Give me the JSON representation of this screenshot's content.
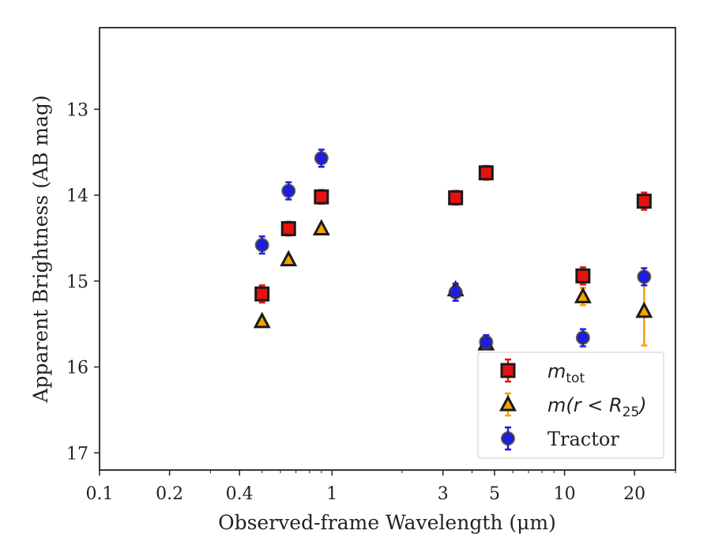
{
  "chart_data": {
    "type": "scatter",
    "xlabel": "Observed-frame Wavelength (μm)",
    "ylabel": "Apparent Brightness (AB mag)",
    "xscale": "log",
    "xlim": [
      0.1,
      30
    ],
    "ylim": [
      17.2,
      12.05
    ],
    "y_inverted": true,
    "x_ticks": [
      0.1,
      0.2,
      0.4,
      1,
      3,
      5,
      10,
      20
    ],
    "x_tick_labels": [
      "0.1",
      "0.2",
      "0.4",
      "1",
      "3",
      "5",
      "10",
      "20"
    ],
    "y_ticks": [
      13,
      14,
      15,
      16,
      17
    ],
    "y_tick_labels": [
      "13",
      "14",
      "15",
      "16",
      "17"
    ],
    "grid": false,
    "legend_position": "bottom-right",
    "series": [
      {
        "name": "m_tot",
        "marker": "square",
        "color": "#e8110f",
        "edge_color": "#1a1a1a",
        "error_color": "#e8110f",
        "points": [
          {
            "x": 0.5,
            "y": 15.15,
            "err": 0.1
          },
          {
            "x": 0.65,
            "y": 14.39,
            "err": 0.08
          },
          {
            "x": 0.9,
            "y": 14.02,
            "err": 0.08
          },
          {
            "x": 3.4,
            "y": 14.03,
            "err": 0.08
          },
          {
            "x": 4.6,
            "y": 13.74,
            "err": 0.08
          },
          {
            "x": 12.0,
            "y": 14.94,
            "err": 0.1
          },
          {
            "x": 22.0,
            "y": 14.07,
            "err": 0.1
          }
        ]
      },
      {
        "name": "m(r < R25)",
        "marker": "triangle",
        "color": "#f5a300",
        "edge_color": "#1a1a1a",
        "error_color": "#f5a300",
        "points": [
          {
            "x": 0.5,
            "y": 15.47,
            "err": 0.03
          },
          {
            "x": 0.65,
            "y": 14.75,
            "err": 0.03
          },
          {
            "x": 0.9,
            "y": 14.39,
            "err": 0.03
          },
          {
            "x": 3.4,
            "y": 15.1,
            "err": 0.05
          },
          {
            "x": 4.6,
            "y": 15.73,
            "err": 0.05
          },
          {
            "x": 12.0,
            "y": 15.18,
            "err": 0.1
          },
          {
            "x": 22.0,
            "y": 15.35,
            "err": 0.4
          }
        ]
      },
      {
        "name": "Tractor",
        "marker": "circle",
        "color": "#1c1cf0",
        "edge_color": "#333333",
        "error_color": "#1c1cf0",
        "points": [
          {
            "x": 0.5,
            "y": 14.58,
            "err": 0.1
          },
          {
            "x": 0.65,
            "y": 13.95,
            "err": 0.1
          },
          {
            "x": 0.9,
            "y": 13.57,
            "err": 0.1
          },
          {
            "x": 3.4,
            "y": 15.13,
            "err": 0.1
          },
          {
            "x": 4.6,
            "y": 15.71,
            "err": 0.08
          },
          {
            "x": 12.0,
            "y": 15.66,
            "err": 0.1
          },
          {
            "x": 22.0,
            "y": 14.95,
            "err": 0.1
          }
        ]
      }
    ],
    "legend_entries": [
      {
        "base": "m",
        "sub": "tot",
        "suffix": ""
      },
      {
        "base": "m(r < R",
        "sub": "25",
        "suffix": ")"
      },
      {
        "base": "Tractor",
        "sub": "",
        "suffix": ""
      }
    ]
  }
}
